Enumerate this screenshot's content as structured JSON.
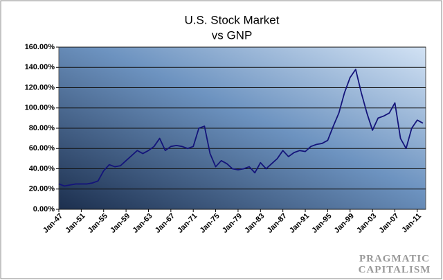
{
  "chart_data": {
    "type": "line",
    "title": [
      "U.S. Stock Market",
      "vs GNP"
    ],
    "annotations": [
      "PRAGMATIC",
      "CAPITALISM"
    ],
    "categories": [
      "Jan-47",
      null,
      null,
      null,
      "Jan-51",
      null,
      null,
      null,
      "Jan-55",
      null,
      null,
      null,
      "Jan-59",
      null,
      null,
      null,
      "Jan-63",
      null,
      null,
      null,
      "Jan-67",
      null,
      null,
      null,
      "Jan-71",
      null,
      null,
      null,
      "Jan-75",
      null,
      null,
      null,
      "Jan-79",
      null,
      null,
      null,
      "Jan-83",
      null,
      null,
      null,
      "Jan-87",
      null,
      null,
      null,
      "Jan-91",
      null,
      null,
      null,
      "Jan-95",
      null,
      null,
      null,
      "Jan-99",
      null,
      null,
      null,
      "Jan-03",
      null,
      null,
      null,
      "Jan-07",
      null,
      null,
      null,
      "Jan-11",
      null
    ],
    "series": [
      {
        "name": "Stock Market vs GNP",
        "color": "#14147a",
        "values": [
          25,
          23,
          24,
          25,
          25,
          25,
          26,
          28,
          38,
          44,
          42,
          43,
          48,
          53,
          58,
          55,
          58,
          62,
          70,
          58,
          62,
          63,
          62,
          60,
          62,
          80,
          82,
          55,
          42,
          48,
          45,
          40,
          39,
          40,
          42,
          36,
          46,
          40,
          45,
          50,
          58,
          52,
          56,
          58,
          57,
          62,
          64,
          65,
          68,
          82,
          95,
          115,
          130,
          138,
          115,
          95,
          78,
          90,
          92,
          95,
          105,
          70,
          60,
          80,
          88,
          85
        ]
      }
    ],
    "ylim": [
      0,
      160
    ],
    "yticks": [
      {
        "value": 0,
        "label": "0.00%"
      },
      {
        "value": 20,
        "label": "20.00%"
      },
      {
        "value": 40,
        "label": "40.00%"
      },
      {
        "value": 60,
        "label": "60.00%"
      },
      {
        "value": 80,
        "label": "80.00%"
      },
      {
        "value": 100,
        "label": "100.00%"
      },
      {
        "value": 120,
        "label": "120.00%"
      },
      {
        "value": 140,
        "label": "140.00%"
      },
      {
        "value": 160,
        "label": "160.00%"
      }
    ],
    "grid": true
  }
}
